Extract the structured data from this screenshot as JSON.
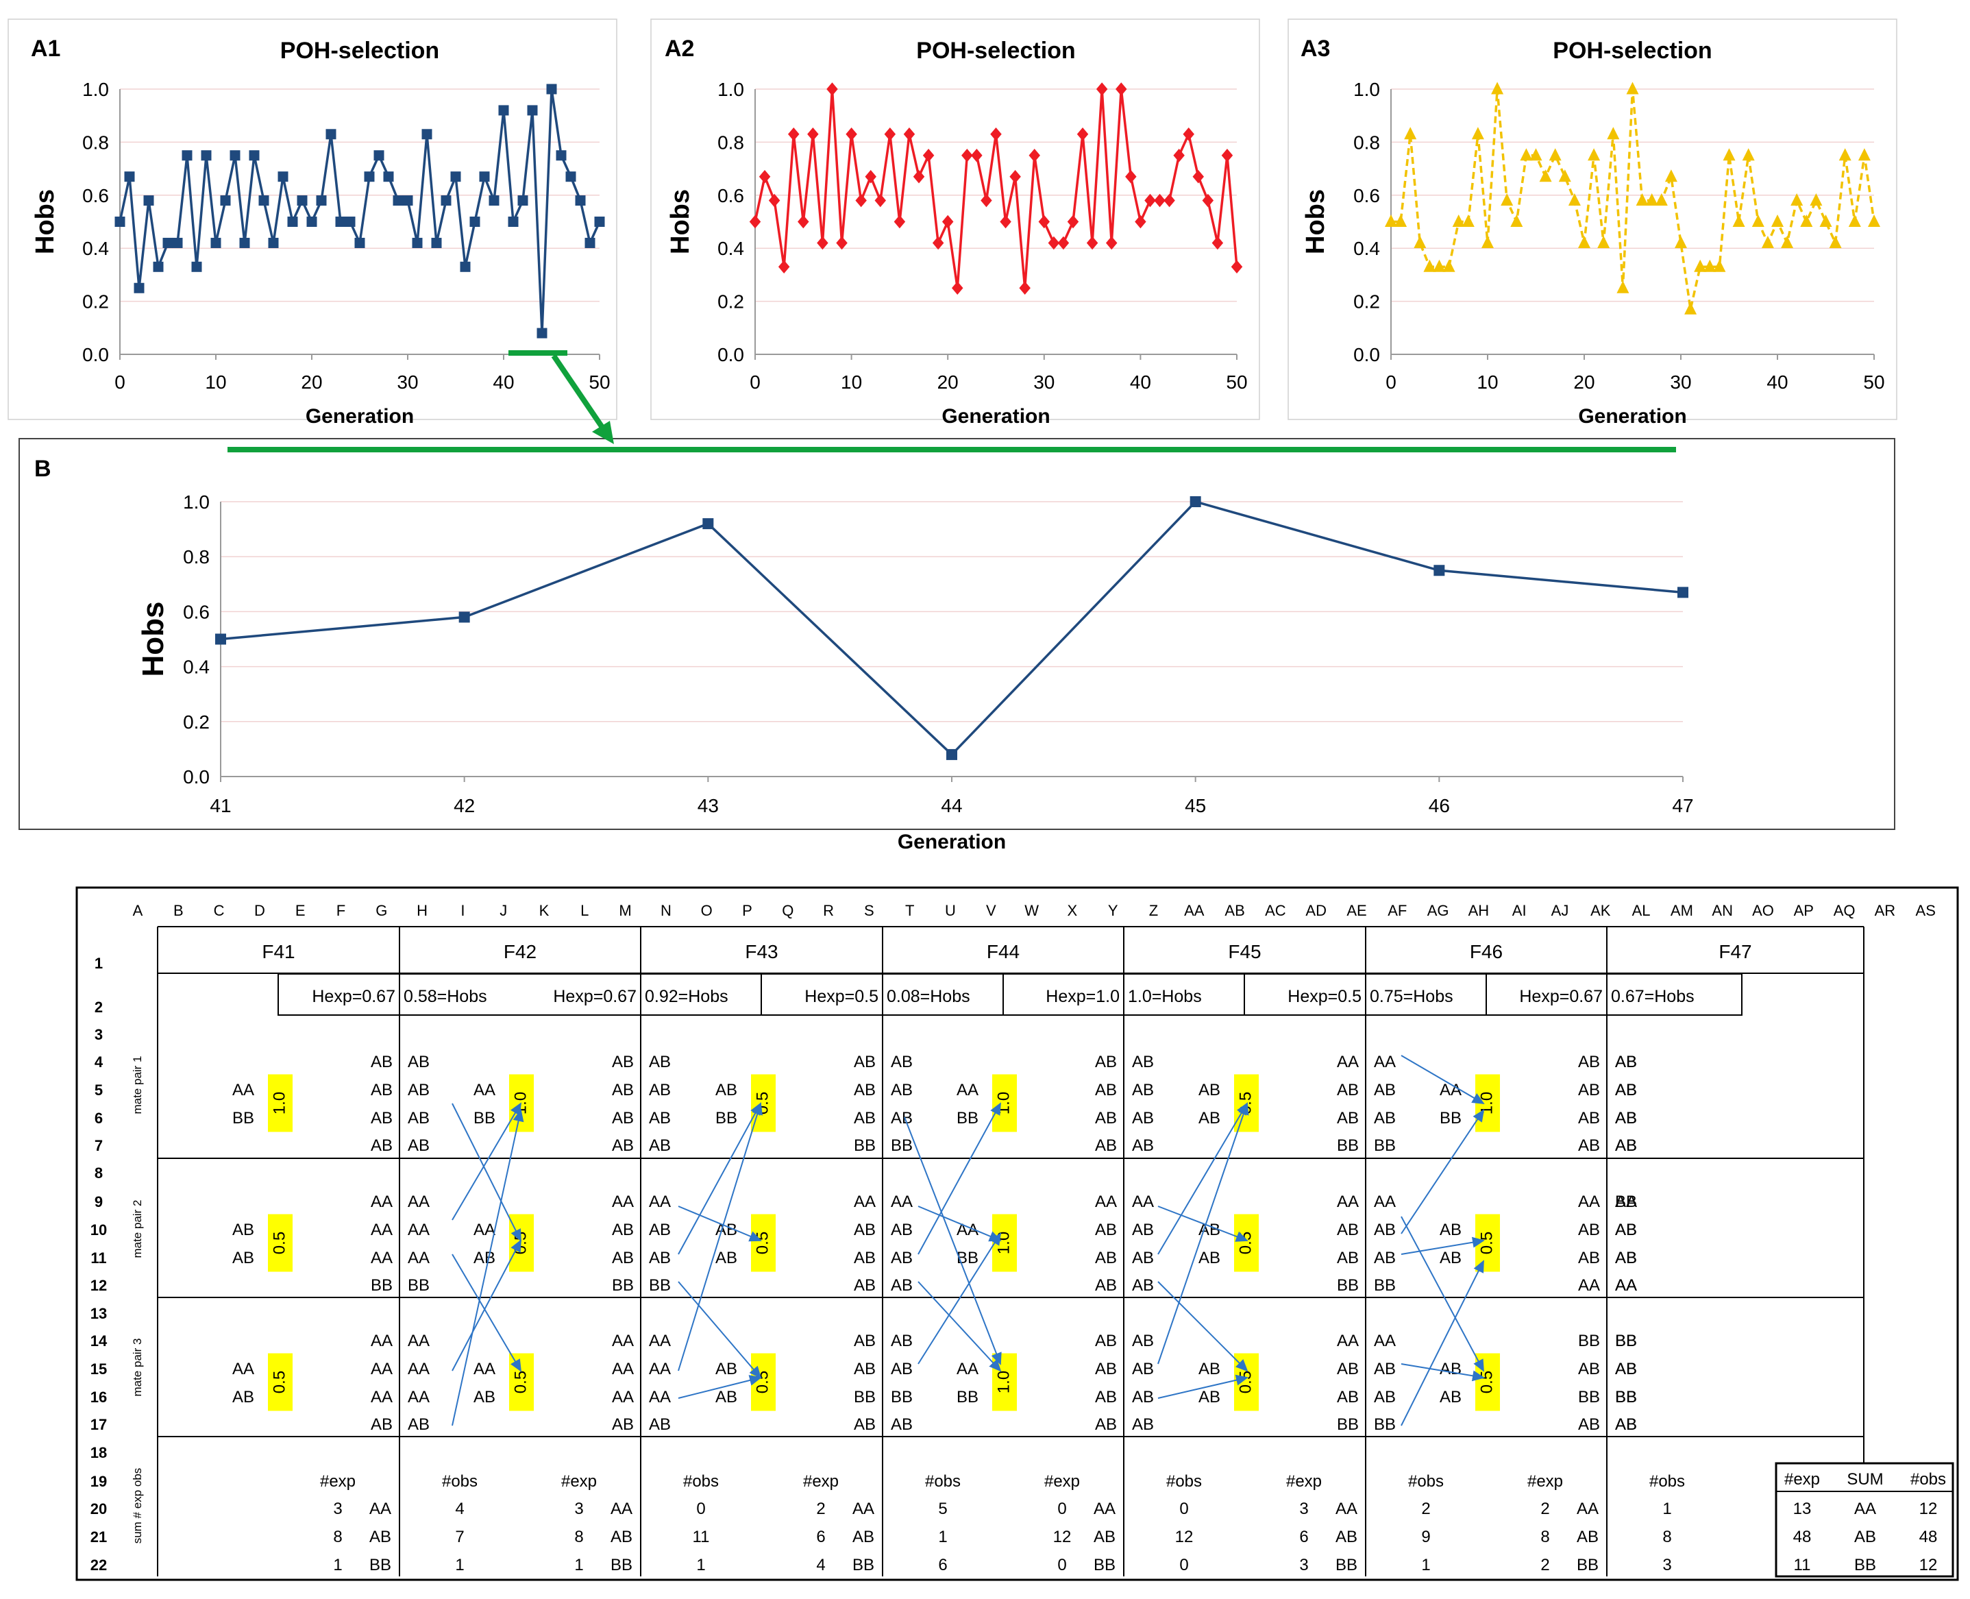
{
  "colors": {
    "blue": "#1f497d",
    "red": "#ee1c24",
    "yellow": "#f2c200",
    "green": "#10a13c",
    "arrow": "#2e75c6",
    "highlight": "#ffff00"
  },
  "chart_data": [
    {
      "id": "A1",
      "panel_label": "A1",
      "type": "line",
      "marker": "square",
      "title": "POH-selection",
      "xlabel": "Generation",
      "ylabel": "Hobs",
      "xlim": [
        0,
        50
      ],
      "ylim": [
        0,
        1
      ],
      "xticks": [
        "0",
        "10",
        "20",
        "30",
        "40",
        "50"
      ],
      "yticks": [
        "0.0",
        "0.2",
        "0.4",
        "0.6",
        "0.8",
        "1.0"
      ],
      "x": [
        0,
        1,
        2,
        3,
        4,
        5,
        6,
        7,
        8,
        9,
        10,
        11,
        12,
        13,
        14,
        15,
        16,
        17,
        18,
        19,
        20,
        21,
        22,
        23,
        24,
        25,
        26,
        27,
        28,
        29,
        30,
        31,
        32,
        33,
        34,
        35,
        36,
        37,
        38,
        39,
        40,
        41,
        42,
        43,
        44,
        45,
        46,
        47,
        48,
        49,
        50
      ],
      "values": [
        0.5,
        0.67,
        0.25,
        0.58,
        0.33,
        0.42,
        0.42,
        0.75,
        0.33,
        0.75,
        0.42,
        0.58,
        0.75,
        0.42,
        0.75,
        0.58,
        0.42,
        0.67,
        0.5,
        0.58,
        0.5,
        0.58,
        0.83,
        0.5,
        0.5,
        0.42,
        0.67,
        0.75,
        0.67,
        0.58,
        0.58,
        0.42,
        0.83,
        0.42,
        0.58,
        0.67,
        0.33,
        0.5,
        0.67,
        0.58,
        0.92,
        0.5,
        0.58,
        0.92,
        0.08,
        1.0,
        0.75,
        0.67,
        0.58,
        0.42,
        0.5
      ]
    },
    {
      "id": "A2",
      "panel_label": "A2",
      "type": "line",
      "marker": "diamond",
      "title": "POH-selection",
      "xlabel": "Generation",
      "ylabel": "Hobs",
      "xlim": [
        0,
        50
      ],
      "ylim": [
        0,
        1
      ],
      "xticks": [
        "0",
        "10",
        "20",
        "30",
        "40",
        "50"
      ],
      "yticks": [
        "0.0",
        "0.2",
        "0.4",
        "0.6",
        "0.8",
        "1.0"
      ],
      "x": [
        0,
        1,
        2,
        3,
        4,
        5,
        6,
        7,
        8,
        9,
        10,
        11,
        12,
        13,
        14,
        15,
        16,
        17,
        18,
        19,
        20,
        21,
        22,
        23,
        24,
        25,
        26,
        27,
        28,
        29,
        30,
        31,
        32,
        33,
        34,
        35,
        36,
        37,
        38,
        39,
        40,
        41,
        42,
        43,
        44,
        45,
        46,
        47,
        48,
        49,
        50
      ],
      "values": [
        0.5,
        0.67,
        0.58,
        0.33,
        0.83,
        0.5,
        0.83,
        0.42,
        1.0,
        0.42,
        0.83,
        0.58,
        0.67,
        0.58,
        0.83,
        0.5,
        0.83,
        0.67,
        0.75,
        0.42,
        0.5,
        0.25,
        0.75,
        0.75,
        0.58,
        0.83,
        0.5,
        0.67,
        0.25,
        0.75,
        0.5,
        0.42,
        0.42,
        0.5,
        0.83,
        0.42,
        1.0,
        0.42,
        1.0,
        0.67,
        0.5,
        0.58,
        0.58,
        0.58,
        0.75,
        0.83,
        0.67,
        0.58,
        0.42,
        0.75,
        0.33
      ]
    },
    {
      "id": "A3",
      "panel_label": "A3",
      "type": "line",
      "marker": "triangle",
      "linestyle": "dashed",
      "title": "POH-selection",
      "xlabel": "Generation",
      "ylabel": "Hobs",
      "xlim": [
        0,
        50
      ],
      "ylim": [
        0,
        1
      ],
      "xticks": [
        "0",
        "10",
        "20",
        "30",
        "40",
        "50"
      ],
      "yticks": [
        "0.0",
        "0.2",
        "0.4",
        "0.6",
        "0.8",
        "1.0"
      ],
      "x": [
        0,
        1,
        2,
        3,
        4,
        5,
        6,
        7,
        8,
        9,
        10,
        11,
        12,
        13,
        14,
        15,
        16,
        17,
        18,
        19,
        20,
        21,
        22,
        23,
        24,
        25,
        26,
        27,
        28,
        29,
        30,
        31,
        32,
        33,
        34,
        35,
        36,
        37,
        38,
        39,
        40,
        41,
        42,
        43,
        44,
        45,
        46,
        47,
        48,
        49,
        50
      ],
      "values": [
        0.5,
        0.5,
        0.83,
        0.42,
        0.33,
        0.33,
        0.33,
        0.5,
        0.5,
        0.83,
        0.42,
        1.0,
        0.58,
        0.5,
        0.75,
        0.75,
        0.67,
        0.75,
        0.67,
        0.58,
        0.42,
        0.75,
        0.42,
        0.83,
        0.25,
        1.0,
        0.58,
        0.58,
        0.58,
        0.67,
        0.42,
        0.17,
        0.33,
        0.33,
        0.33,
        0.75,
        0.5,
        0.75,
        0.5,
        0.42,
        0.5,
        0.42,
        0.58,
        0.5,
        0.58,
        0.5,
        0.42,
        0.75,
        0.5,
        0.75,
        0.5
      ]
    },
    {
      "id": "B",
      "panel_label": "B",
      "type": "line",
      "marker": "square",
      "title": "",
      "xlabel": "Generation",
      "ylabel": "Hobs",
      "xlim": [
        41,
        47
      ],
      "ylim": [
        0,
        1
      ],
      "xticks": [
        "41",
        "42",
        "43",
        "44",
        "45",
        "46",
        "47"
      ],
      "yticks": [
        "0.0",
        "0.2",
        "0.4",
        "0.6",
        "0.8",
        "1.0"
      ],
      "x": [
        41,
        42,
        43,
        44,
        45,
        46,
        47
      ],
      "values": [
        0.5,
        0.58,
        0.92,
        0.08,
        1.0,
        0.75,
        0.67
      ]
    }
  ],
  "table": {
    "col_letters": [
      "A",
      "B",
      "C",
      "D",
      "E",
      "F",
      "G",
      "H",
      "I",
      "J",
      "K",
      "L",
      "M",
      "N",
      "O",
      "P",
      "Q",
      "R",
      "S",
      "T",
      "U",
      "V",
      "W",
      "X",
      "Y",
      "Z",
      "AA",
      "AB",
      "AC",
      "AD",
      "AE",
      "AF",
      "AG",
      "AH",
      "AI",
      "AJ",
      "AK",
      "AL",
      "AM",
      "AN",
      "AO",
      "AP",
      "AQ",
      "AR",
      "AS"
    ],
    "row_numbers": [
      "1",
      "2",
      "3",
      "4",
      "5",
      "6",
      "7",
      "8",
      "9",
      "10",
      "11",
      "12",
      "13",
      "14",
      "15",
      "16",
      "17",
      "18",
      "19",
      "20",
      "21",
      "22"
    ],
    "generations": [
      "F41",
      "F42",
      "F43",
      "F44",
      "F45",
      "F46",
      "F47"
    ],
    "stat_boxes": [
      {
        "hexp": "Hexp=0.67",
        "hobs": "0.58=Hobs"
      },
      {
        "hexp": "Hexp=0.67",
        "hobs": "0.92=Hobs"
      },
      {
        "hexp": "Hexp=0.5",
        "hobs": "0.08=Hobs"
      },
      {
        "hexp": "Hexp=1.0",
        "hobs": "1.0=Hobs"
      },
      {
        "hexp": "Hexp=0.5",
        "hobs": "0.75=Hobs"
      },
      {
        "hexp": "Hexp=0.67",
        "hobs": "0.67=Hobs"
      }
    ],
    "section_labels": [
      "mate pair 1",
      "mate pair 2",
      "mate pair 3",
      "sum # exp obs"
    ],
    "offspring": [
      [
        "AB",
        "AB",
        "AB",
        "AB",
        "AA",
        "AA",
        "AA",
        "BB",
        "AA",
        "AA",
        "AA",
        "AB"
      ],
      [
        "AB",
        "AB",
        "AB",
        "AB",
        "AA",
        "AB",
        "AB",
        "BB",
        "AA",
        "AA",
        "AA",
        "AB"
      ],
      [
        "AB",
        "AB",
        "AB",
        "BB",
        "AA",
        "AB",
        "AB",
        "AB",
        "AB",
        "AB",
        "BB",
        "AB"
      ],
      [
        "AB",
        "AB",
        "AB",
        "AB",
        "AA",
        "AB",
        "AB",
        "AB",
        "AB",
        "AB",
        "AB",
        "AB"
      ],
      [
        "AA",
        "AB",
        "AB",
        "BB",
        "AA",
        "AB",
        "AB",
        "BB",
        "AA",
        "AB",
        "AB",
        "BB"
      ],
      [
        "AB",
        "AB",
        "AB",
        "AB",
        "AA",
        "AB",
        "AB",
        "AA",
        "BB",
        "AB",
        "BB",
        "AB"
      ]
    ],
    "mothers": [
      [
        "AB",
        "AB",
        "AB",
        "AB"
      ],
      [
        "AB",
        "AB",
        "BB",
        "AA"
      ],
      [
        "AB",
        "AB",
        "AB",
        "AA"
      ],
      [
        "AB",
        "AB",
        "BB",
        "AB"
      ],
      [
        "AB",
        "AB",
        "AB",
        "AB"
      ],
      [
        "BB",
        "AB",
        "AB",
        "AA"
      ]
    ],
    "f47": [
      "AB",
      "AB",
      "AB",
      "AB",
      "BB",
      "AB",
      "AB",
      "AA",
      "BB",
      "AB",
      "BB",
      "AB"
    ],
    "parents": [
      [
        [
          "AA",
          "BB"
        ],
        [
          "AB",
          "AB"
        ],
        [
          "AA",
          "AB"
        ]
      ],
      [
        [
          "AA",
          "BB"
        ],
        [
          "AA",
          "AB"
        ],
        [
          "AA",
          "AB"
        ]
      ],
      [
        [
          "AB",
          "BB"
        ],
        [
          "AB",
          "AB"
        ],
        [
          "AB",
          "AB"
        ]
      ],
      [
        [
          "AA",
          "BB"
        ],
        [
          "AA",
          "BB"
        ],
        [
          "AA",
          "BB"
        ]
      ],
      [
        [
          "AB",
          "AB"
        ],
        [
          "AB",
          "AB"
        ],
        [
          "AB",
          "AB"
        ]
      ],
      [
        [
          "AA",
          "BB"
        ],
        [
          "AB",
          "AB"
        ],
        [
          "AB",
          "AB"
        ]
      ]
    ],
    "hexp_boxes": [
      [
        "1.0",
        "0.5",
        "0.5"
      ],
      [
        "1.0",
        "0.5",
        "0.5"
      ],
      [
        "0.5",
        "0.5",
        "0.5"
      ],
      [
        "1.0",
        "1.0",
        "1.0"
      ],
      [
        "0.5",
        "0.5",
        "0.5"
      ],
      [
        "1.0",
        "0.5",
        "0.5"
      ]
    ],
    "exp_label": "#exp",
    "obs_label": "#obs",
    "genotypes": [
      "AA",
      "AB",
      "BB"
    ],
    "sum_exp": [
      [
        "3",
        "8",
        "1"
      ],
      [
        "3",
        "8",
        "1"
      ],
      [
        "2",
        "6",
        "4"
      ],
      [
        "0",
        "12",
        "0"
      ],
      [
        "3",
        "6",
        "3"
      ],
      [
        "2",
        "8",
        "2"
      ]
    ],
    "sum_obs": [
      [
        "4",
        "7",
        "1"
      ],
      [
        "0",
        "11",
        "1"
      ],
      [
        "5",
        "1",
        "6"
      ],
      [
        "0",
        "12",
        "0"
      ],
      [
        "2",
        "9",
        "1"
      ],
      [
        "1",
        "8",
        "3"
      ]
    ],
    "summary": {
      "header": [
        "#exp",
        "SUM",
        "#obs"
      ],
      "rows": [
        [
          "13",
          "AA",
          "12"
        ],
        [
          "48",
          "AB",
          "48"
        ],
        [
          "11",
          "BB",
          "12"
        ]
      ]
    }
  }
}
